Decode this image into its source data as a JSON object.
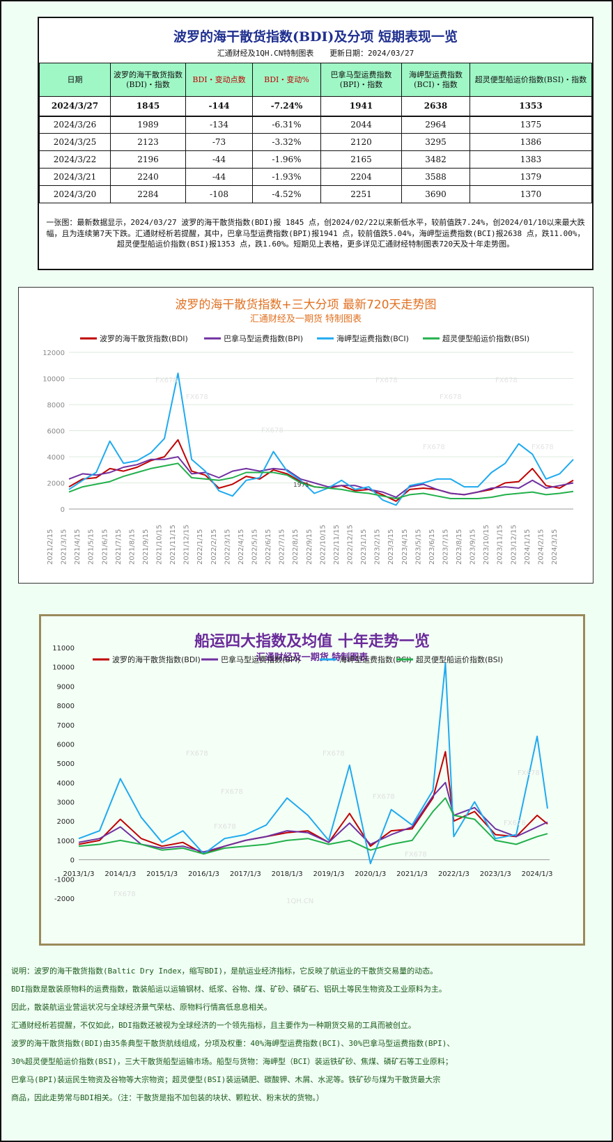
{
  "summary": {
    "title": "波罗的海干散货指数(BDI)及分项  短期表现一览",
    "source": "汇通财经及1QH.CN特制图表",
    "update": "更新日期：2024/03/27",
    "headers": [
      "日期",
      "波罗的海干散货指数(BDI)・指数",
      "BDI・变动点数",
      "BDI・变动%",
      "巴拿马型运费指数(BPI)・指数",
      "海岬型运费指数(BCI)・指数",
      "超灵便型船运价指数(BSI)・指数"
    ],
    "rows": [
      [
        "2024/3/27",
        "1845",
        "-144",
        "-7.24%",
        "1941",
        "2638",
        "1353"
      ],
      [
        "2024/3/26",
        "1989",
        "-134",
        "-6.31%",
        "2044",
        "2964",
        "1375"
      ],
      [
        "2024/3/25",
        "2123",
        "-73",
        "-3.32%",
        "2120",
        "3295",
        "1386"
      ],
      [
        "2024/3/22",
        "2196",
        "-44",
        "-1.96%",
        "2165",
        "3482",
        "1383"
      ],
      [
        "2024/3/21",
        "2240",
        "-44",
        "-1.93%",
        "2204",
        "3588",
        "1379"
      ],
      [
        "2024/3/20",
        "2284",
        "-108",
        "-4.52%",
        "2251",
        "3690",
        "1370"
      ]
    ],
    "note": "一张图：最新数据显示，2024/03/27 波罗的海干散货指数(BDI)报 1845 点，创2024/02/22以来新低水平，较前值跌7.24%，创2024/01/10以来最大跌幅，且为连续第7天下跌。汇通财经析若提醒，其中，巴拿马型运费指数(BPI)报1941 点，较前值跌5.04%，海岬型运费指数(BCI)报2638 点，跌11.00%，超灵便型船运价指数(BSI)报1353 点，跌1.60%。短期见上表格，更多详见汇通财经特制图表720天及十年走势图。"
  },
  "colors": {
    "bdi": "#c00000",
    "bpi": "#7030a0",
    "bci": "#1eaaf0",
    "bsi": "#22b04b"
  },
  "chart_data": [
    {
      "type": "line",
      "title": "波罗的海干散货指数+三大分项  最新720天走势图",
      "subtitle": "汇通财经及一期货 特制图表",
      "legend_position": "top",
      "grid": true,
      "ylim": [
        0,
        12000
      ],
      "yticks": [
        "0",
        "2000",
        "4000",
        "6000",
        "8000",
        "10000",
        "12000"
      ],
      "x": [
        "2021/2/15",
        "2021/3/15",
        "2021/4/15",
        "2021/5/15",
        "2021/6/15",
        "2021/7/15",
        "2021/8/15",
        "2021/9/15",
        "2021/10/15",
        "2021/11/15",
        "2021/12/15",
        "2022/1/15",
        "2022/2/15",
        "2022/3/15",
        "2022/4/15",
        "2022/5/15",
        "2022/6/15",
        "2022/7/15",
        "2022/8/15",
        "2022/9/15",
        "2022/10/15",
        "2022/11/15",
        "2022/12/15",
        "2023/1/15",
        "2023/2/15",
        "2023/3/15",
        "2023/4/15",
        "2023/5/15",
        "2023/6/15",
        "2023/7/15",
        "2023/8/15",
        "2023/9/15",
        "2023/10/15",
        "2023/11/15",
        "2023/12/15",
        "2024/1/15",
        "2024/2/15",
        "2024/3/15"
      ],
      "series": [
        {
          "name": "波罗的海干散货指数(BDI)",
          "color_key": "bdi",
          "values": [
            1700,
            2300,
            2400,
            3100,
            2900,
            3200,
            3700,
            4000,
            5300,
            2900,
            2600,
            1600,
            1900,
            2500,
            2300,
            3000,
            2700,
            2100,
            1700,
            1600,
            1800,
            1400,
            1500,
            1100,
            600,
            1500,
            1600,
            1500,
            1200,
            1100,
            1300,
            1500,
            2000,
            2100,
            3100,
            1800,
            1600,
            2200
          ]
        },
        {
          "name": "巴拿马型运费指数(BPI)",
          "color_key": "bpi",
          "values": [
            2300,
            2700,
            2600,
            2800,
            3200,
            3400,
            3800,
            3800,
            4000,
            2700,
            2800,
            2400,
            2900,
            3100,
            2900,
            3100,
            3000,
            2300,
            2000,
            1700,
            1800,
            1800,
            1500,
            1300,
            900,
            1700,
            1900,
            1500,
            1200,
            1100,
            1300,
            1600,
            1700,
            1600,
            2200,
            1600,
            1800,
            2000
          ]
        },
        {
          "name": "海岬型运费指数(BCI)",
          "color_key": "bci",
          "values": [
            1500,
            2200,
            2800,
            5200,
            3500,
            3700,
            4300,
            5400,
            10400,
            3800,
            2900,
            1400,
            1000,
            2200,
            2400,
            4400,
            2900,
            2200,
            1200,
            1600,
            2200,
            1500,
            1700,
            700,
            300,
            1800,
            2000,
            2300,
            2300,
            1700,
            1700,
            2800,
            3500,
            5000,
            4200,
            2300,
            2700,
            3800
          ]
        },
        {
          "name": "超灵便型船运价指数(BSI)",
          "color_key": "bsi",
          "values": [
            1300,
            1700,
            1900,
            2100,
            2500,
            2800,
            3100,
            3300,
            3500,
            2400,
            2300,
            2200,
            2400,
            2800,
            2800,
            2800,
            2600,
            2000,
            1700,
            1600,
            1500,
            1300,
            1200,
            1000,
            800,
            1100,
            1200,
            1000,
            800,
            800,
            800,
            900,
            1100,
            1200,
            1300,
            1100,
            1200,
            1350
          ]
        }
      ],
      "point_label": "1971"
    },
    {
      "type": "line",
      "title": "船运四大指数及均值 十年走势一览",
      "subtitle": "汇通财经及一期货 特制图表",
      "legend_position": "top",
      "grid": false,
      "ylim": [
        -2000,
        11000
      ],
      "yticks": [
        "-2000",
        "-1000",
        "0",
        "1000",
        "2000",
        "3000",
        "4000",
        "5000",
        "6000",
        "7000",
        "8000",
        "9000",
        "10000",
        "11000"
      ],
      "x_labels": [
        "2013/1/3",
        "2014/1/3",
        "2015/1/3",
        "2016/1/3",
        "2017/1/3",
        "2018/1/3",
        "2019/1/3",
        "2020/1/3",
        "2021/1/3",
        "2022/1/3",
        "2023/1/3",
        "2024/1/3"
      ],
      "x": [
        2013.0,
        2013.5,
        2014.0,
        2014.5,
        2015.0,
        2015.5,
        2016.0,
        2016.5,
        2017.0,
        2017.5,
        2018.0,
        2018.5,
        2019.0,
        2019.5,
        2020.0,
        2020.5,
        2021.0,
        2021.5,
        2021.8,
        2022.0,
        2022.5,
        2023.0,
        2023.5,
        2024.0,
        2024.25
      ],
      "series": [
        {
          "name": "波罗的海干散货指数(BDI)",
          "color_key": "bdi",
          "values": [
            800,
            1000,
            2100,
            1100,
            700,
            900,
            300,
            700,
            1000,
            1200,
            1400,
            1500,
            900,
            2400,
            700,
            1500,
            1600,
            3200,
            5600,
            2000,
            2500,
            1300,
            1200,
            2300,
            1850
          ]
        },
        {
          "name": "巴拿马型运费指数(BPI)",
          "color_key": "bpi",
          "values": [
            900,
            1100,
            1700,
            800,
            600,
            700,
            400,
            700,
            1000,
            1200,
            1500,
            1400,
            900,
            1900,
            800,
            1300,
            1700,
            3300,
            4000,
            2300,
            2700,
            1600,
            1200,
            1700,
            1950
          ]
        },
        {
          "name": "海岬型运费指数(BCI)",
          "color_key": "bci",
          "values": [
            1100,
            1500,
            4200,
            2200,
            900,
            1500,
            300,
            1100,
            1300,
            1800,
            3200,
            2300,
            1000,
            4900,
            -200,
            2600,
            1800,
            3600,
            10200,
            1200,
            3000,
            1100,
            1300,
            6400,
            2650
          ]
        },
        {
          "name": "超灵便型船运价指数(BSI)",
          "color_key": "bsi",
          "values": [
            700,
            800,
            1000,
            800,
            500,
            600,
            300,
            600,
            700,
            800,
            1000,
            1100,
            800,
            1000,
            500,
            800,
            1000,
            2500,
            3200,
            2300,
            2100,
            1000,
            800,
            1200,
            1350
          ]
        }
      ]
    }
  ],
  "watermarks": [
    "FX678",
    "1QH.CN"
  ],
  "explain": [
    "说明：波罗的海干散货指数(Baltic Dry Index，缩写BDI)，是航运业经济指标，它反映了航运业的干散货交易量的动态。",
    "BDI指数是散装原物料的运费指数，散装船运以运输钢材、纸浆、谷物、煤、矿砂、磷矿石、铝矾土等民生物资及工业原料为主。",
    "因此，散装航运业营运状况与全球经济景气荣枯、原物料行情高低息息相关。",
    "汇通财经析若提醒，不仅如此，BDI指数还被视为全球经济的一个领先指标，且主要作为一种期货交易的工具而被创立。",
    "波罗的海干散货指数(BDI)由35条典型干散货航线组成，分项及权重：40%海岬型运费指数(BCI)、30%巴拿马型运费指数(BPI)、",
    "30%超灵便型船运价指数(BSI)，三大干散货船型运输市场。船型与货物：海岬型（BCI）装运铁矿砂、焦煤、磷矿石等工业原料；",
    "巴拿马(BPI)装运民生物资及谷物等大宗物资；超灵便型(BSI)装运磷肥、碳酸钾、木屑、水泥等。铁矿砂与煤为干散货最大宗",
    "商品，因此走势常与BDI相关。（注：干散货是指不加包装的块状、颗粒状、粉末状的货物。）"
  ]
}
